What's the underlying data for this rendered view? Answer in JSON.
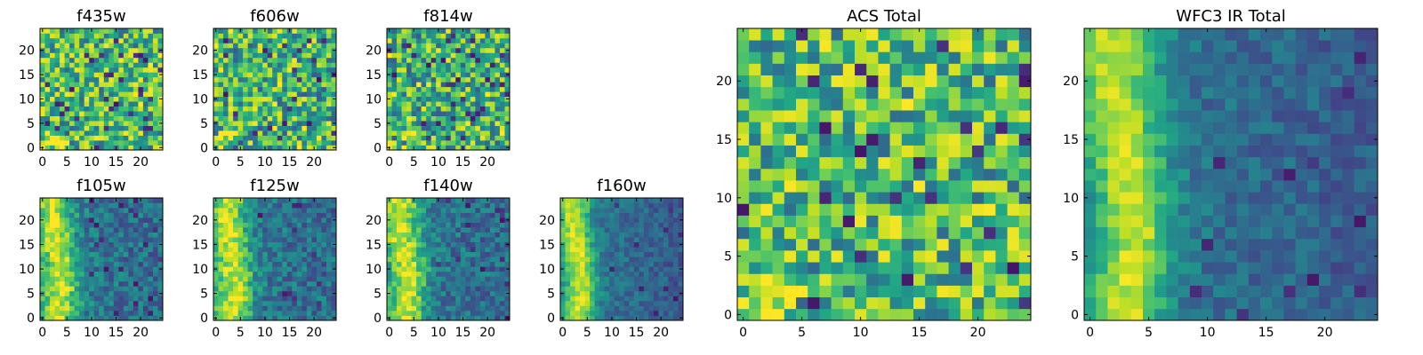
{
  "chart_data": [
    {
      "type": "heatmap",
      "title": "f435w",
      "x_ticks": [
        0,
        5,
        10,
        15,
        20
      ],
      "y_ticks": [
        0,
        5,
        10,
        15,
        20
      ],
      "xlim": [
        -0.5,
        24.5
      ],
      "ylim": [
        -0.5,
        24.5
      ],
      "grid": false,
      "colormap": "viridis",
      "grid_size": 25,
      "texture_seed": 11,
      "pattern": "noise-bright"
    },
    {
      "type": "heatmap",
      "title": "f606w",
      "x_ticks": [
        0,
        5,
        10,
        15,
        20
      ],
      "y_ticks": [
        0,
        5,
        10,
        15,
        20
      ],
      "xlim": [
        -0.5,
        24.5
      ],
      "ylim": [
        -0.5,
        24.5
      ],
      "grid": false,
      "colormap": "viridis",
      "grid_size": 25,
      "texture_seed": 23,
      "pattern": "noise"
    },
    {
      "type": "heatmap",
      "title": "f814w",
      "x_ticks": [
        0,
        5,
        10,
        15,
        20
      ],
      "y_ticks": [
        0,
        5,
        10,
        15,
        20
      ],
      "xlim": [
        -0.5,
        24.5
      ],
      "ylim": [
        -0.5,
        24.5
      ],
      "grid": false,
      "colormap": "viridis",
      "grid_size": 25,
      "texture_seed": 37,
      "pattern": "noise"
    },
    {
      "type": "heatmap",
      "title": "f105w",
      "x_ticks": [
        0,
        5,
        10,
        15,
        20
      ],
      "y_ticks": [
        0,
        5,
        10,
        15,
        20
      ],
      "xlim": [
        -0.5,
        24.5
      ],
      "ylim": [
        -0.5,
        24.5
      ],
      "grid": false,
      "colormap": "viridis",
      "grid_size": 25,
      "texture_seed": 41,
      "pattern": "left-ridge"
    },
    {
      "type": "heatmap",
      "title": "f125w",
      "x_ticks": [
        0,
        5,
        10,
        15,
        20
      ],
      "y_ticks": [
        0,
        5,
        10,
        15,
        20
      ],
      "xlim": [
        -0.5,
        24.5
      ],
      "ylim": [
        -0.5,
        24.5
      ],
      "grid": false,
      "colormap": "viridis",
      "grid_size": 25,
      "texture_seed": 53,
      "pattern": "left-ridge"
    },
    {
      "type": "heatmap",
      "title": "f140w",
      "x_ticks": [
        0,
        5,
        10,
        15,
        20
      ],
      "y_ticks": [
        0,
        5,
        10,
        15,
        20
      ],
      "xlim": [
        -0.5,
        24.5
      ],
      "ylim": [
        -0.5,
        24.5
      ],
      "grid": false,
      "colormap": "viridis",
      "grid_size": 25,
      "texture_seed": 67,
      "pattern": "left-ridge"
    },
    {
      "type": "heatmap",
      "title": "f160w",
      "x_ticks": [
        0,
        5,
        10,
        15,
        20
      ],
      "y_ticks": [
        0,
        5,
        10,
        15,
        20
      ],
      "xlim": [
        -0.5,
        24.5
      ],
      "ylim": [
        -0.5,
        24.5
      ],
      "grid": false,
      "colormap": "viridis",
      "grid_size": 25,
      "texture_seed": 79,
      "pattern": "left-ridge-strong"
    },
    {
      "type": "heatmap",
      "title": "ACS Total",
      "x_ticks": [
        0,
        5,
        10,
        15,
        20
      ],
      "y_ticks": [
        0,
        5,
        10,
        15,
        20
      ],
      "xlim": [
        -0.5,
        24.5
      ],
      "ylim": [
        -0.5,
        24.5
      ],
      "grid": false,
      "colormap": "viridis",
      "grid_size": 25,
      "texture_seed": 97,
      "pattern": "noise-bright"
    },
    {
      "type": "heatmap",
      "title": "WFC3 IR Total",
      "x_ticks": [
        0,
        5,
        10,
        15,
        20
      ],
      "y_ticks": [
        0,
        5,
        10,
        15,
        20
      ],
      "xlim": [
        -0.5,
        24.5
      ],
      "ylim": [
        -0.5,
        24.5
      ],
      "grid": false,
      "colormap": "viridis",
      "grid_size": 25,
      "texture_seed": 113,
      "pattern": "left-ridge-strong"
    }
  ]
}
